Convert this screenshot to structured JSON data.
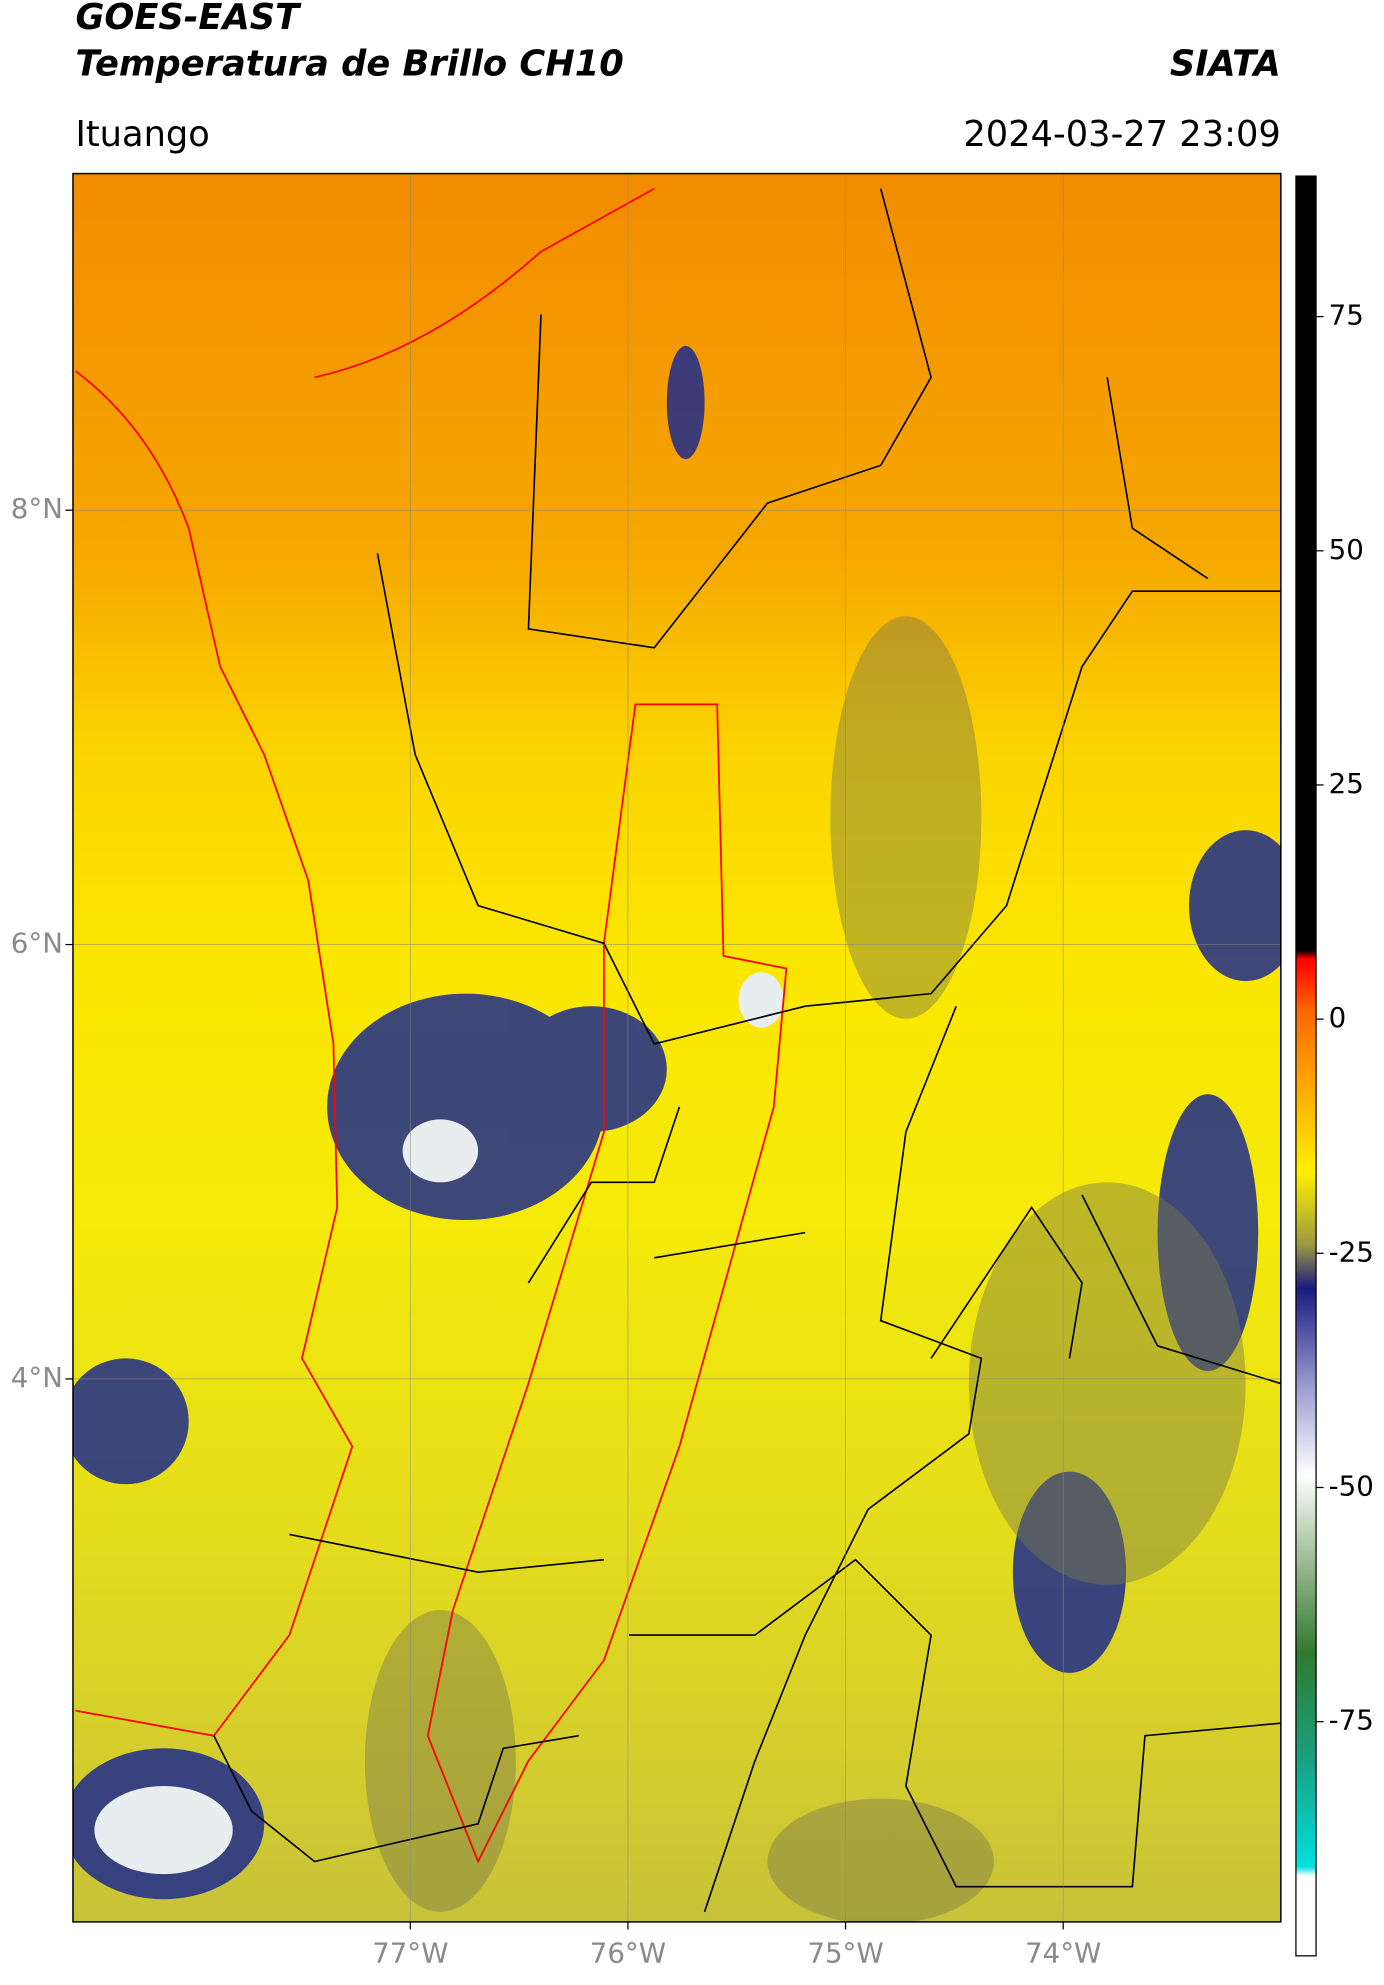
{
  "header": {
    "title": "GOES-EAST",
    "subtitle": "Temperatura de Brillo CH10",
    "agency": "SIATA",
    "location": "Ituango",
    "datetime": "2024-03-27 23:09"
  },
  "map": {
    "latlim": [
      1.5,
      9.55
    ],
    "lonlim": [
      -78.55,
      -73.0
    ],
    "lat_ticks": [
      {
        "value": 8,
        "label": "8°N"
      },
      {
        "value": 6,
        "label": "6°N"
      },
      {
        "value": 4,
        "label": "4°N"
      }
    ],
    "lon_ticks": [
      {
        "value": -77,
        "label": "77°W"
      },
      {
        "value": -76,
        "label": "76°W"
      },
      {
        "value": -75,
        "label": "75°W"
      },
      {
        "value": -74,
        "label": "74°W"
      }
    ],
    "grid": true
  },
  "colorbar": {
    "lim": [
      -100,
      90
    ],
    "ticks": [
      75,
      50,
      25,
      0,
      -25,
      -50,
      -75
    ]
  }
}
